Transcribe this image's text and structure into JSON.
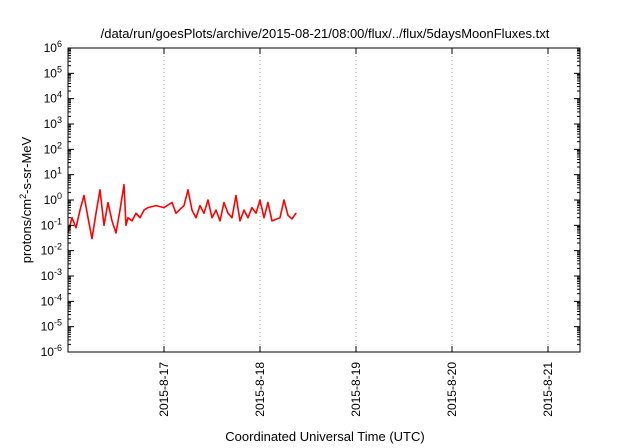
{
  "chart_data": {
    "type": "line",
    "title": "/data/run/goesPlots/archive/2015-08-21/08:00/flux/../flux/5daysMoonFluxes.txt",
    "xlabel": "Coordinated Universal Time (UTC)",
    "ylabel": {
      "prefix": "protons/cm",
      "sup": "2",
      "suffix": "-s-sr-MeV"
    },
    "yscale": "log",
    "ylim_exp": [
      -6,
      6
    ],
    "y_ticks": [
      {
        "base": "10",
        "exp": "-6"
      },
      {
        "base": "10",
        "exp": "-5"
      },
      {
        "base": "10",
        "exp": "-4"
      },
      {
        "base": "10",
        "exp": "-3"
      },
      {
        "base": "10",
        "exp": "-2"
      },
      {
        "base": "10",
        "exp": "-1"
      },
      {
        "base": "10",
        "exp": "0"
      },
      {
        "base": "10",
        "exp": "1"
      },
      {
        "base": "10",
        "exp": "2"
      },
      {
        "base": "10",
        "exp": "3"
      },
      {
        "base": "10",
        "exp": "4"
      },
      {
        "base": "10",
        "exp": "5"
      },
      {
        "base": "10",
        "exp": "6"
      }
    ],
    "xlim": [
      "2015-08-16T00:00",
      "2015-08-21T08:00"
    ],
    "x_ticks": [
      {
        "label": "2015-8-17",
        "date": "2015-08-17T00:00"
      },
      {
        "label": "2015-8-18",
        "date": "2015-08-18T00:00"
      },
      {
        "label": "2015-8-19",
        "date": "2015-08-19T00:00"
      },
      {
        "label": "2015-8-20",
        "date": "2015-08-20T00:00"
      },
      {
        "label": "2015-8-21",
        "date": "2015-08-21T00:00"
      }
    ],
    "grid": true,
    "series": [
      {
        "color": "#ff0000",
        "points": [
          [
            "2015-08-16T00:00",
            0.05
          ],
          [
            "2015-08-16T01:00",
            0.2
          ],
          [
            "2015-08-16T02:00",
            0.08
          ],
          [
            "2015-08-16T03:00",
            0.4
          ],
          [
            "2015-08-16T04:00",
            1.5
          ],
          [
            "2015-08-16T05:00",
            0.2
          ],
          [
            "2015-08-16T06:00",
            0.03
          ],
          [
            "2015-08-16T07:00",
            0.3
          ],
          [
            "2015-08-16T08:00",
            2.5
          ],
          [
            "2015-08-16T09:00",
            0.1
          ],
          [
            "2015-08-16T10:00",
            0.8
          ],
          [
            "2015-08-16T11:00",
            0.15
          ],
          [
            "2015-08-16T12:00",
            0.05
          ],
          [
            "2015-08-16T13:00",
            0.4
          ],
          [
            "2015-08-16T14:00",
            4.0
          ],
          [
            "2015-08-16T14:30",
            0.1
          ],
          [
            "2015-08-16T15:00",
            0.2
          ],
          [
            "2015-08-16T16:00",
            0.15
          ],
          [
            "2015-08-16T17:00",
            0.3
          ],
          [
            "2015-08-16T18:00",
            0.2
          ],
          [
            "2015-08-16T19:00",
            0.4
          ],
          [
            "2015-08-16T20:00",
            0.5
          ],
          [
            "2015-08-16T22:00",
            0.6
          ],
          [
            "2015-08-17T00:00",
            0.5
          ],
          [
            "2015-08-17T02:00",
            0.8
          ],
          [
            "2015-08-17T03:00",
            0.3
          ],
          [
            "2015-08-17T05:00",
            0.6
          ],
          [
            "2015-08-17T06:00",
            2.5
          ],
          [
            "2015-08-17T07:00",
            0.4
          ],
          [
            "2015-08-17T08:00",
            0.2
          ],
          [
            "2015-08-17T09:00",
            0.6
          ],
          [
            "2015-08-17T10:00",
            0.3
          ],
          [
            "2015-08-17T11:00",
            1.0
          ],
          [
            "2015-08-17T12:00",
            0.2
          ],
          [
            "2015-08-17T13:00",
            0.4
          ],
          [
            "2015-08-17T14:00",
            0.15
          ],
          [
            "2015-08-17T15:00",
            0.8
          ],
          [
            "2015-08-17T16:00",
            0.3
          ],
          [
            "2015-08-17T17:00",
            0.2
          ],
          [
            "2015-08-17T18:00",
            1.5
          ],
          [
            "2015-08-17T19:00",
            0.15
          ],
          [
            "2015-08-17T20:00",
            0.4
          ],
          [
            "2015-08-17T21:00",
            0.2
          ],
          [
            "2015-08-17T22:00",
            0.5
          ],
          [
            "2015-08-17T23:00",
            0.3
          ],
          [
            "2015-08-18T00:00",
            1.0
          ],
          [
            "2015-08-18T01:00",
            0.2
          ],
          [
            "2015-08-18T02:00",
            0.8
          ],
          [
            "2015-08-18T03:00",
            0.15
          ],
          [
            "2015-08-18T05:00",
            0.2
          ],
          [
            "2015-08-18T06:00",
            1.0
          ],
          [
            "2015-08-18T07:00",
            0.25
          ],
          [
            "2015-08-18T08:00",
            0.18
          ],
          [
            "2015-08-18T09:00",
            0.3
          ]
        ]
      }
    ]
  }
}
